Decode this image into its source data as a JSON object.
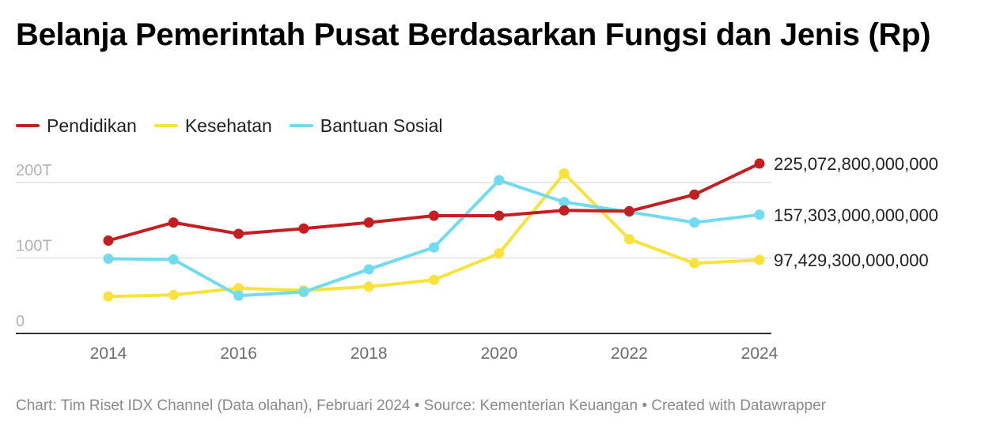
{
  "title": "Belanja Pemerintah Pusat Berdasarkan Fungsi dan Jenis (Rp)",
  "footer": {
    "text": "Chart: Tim Riset IDX Channel (Data olahan), Februari 2024 • Source: Kementerian Keuangan • Created with Datawrapper"
  },
  "chart_data": {
    "type": "line",
    "title": "Belanja Pemerintah Pusat Berdasarkan Fungsi dan Jenis (Rp)",
    "x": [
      2014,
      2015,
      2016,
      2017,
      2018,
      2019,
      2020,
      2021,
      2022,
      2023,
      2024
    ],
    "x_ticks": [
      "2014",
      "2016",
      "2018",
      "2020",
      "2022",
      "2024"
    ],
    "y_ticks": [
      {
        "value": 0,
        "label": "0"
      },
      {
        "value": 100,
        "label": "100T"
      },
      {
        "value": 200,
        "label": "200T"
      }
    ],
    "y_unit": "trillion Rp",
    "ylim": [
      0,
      250
    ],
    "grid": true,
    "legend_position": "top-left",
    "series": [
      {
        "name": "Pendidikan",
        "color": "#c11f20",
        "values": [
          123,
          147,
          132,
          139,
          147,
          156,
          156,
          163,
          162,
          184,
          225.0728
        ],
        "end_label": "225,072,800,000,000"
      },
      {
        "name": "Kesehatan",
        "color": "#f8e23b",
        "values": [
          49,
          51,
          60,
          57,
          62,
          71,
          106,
          212,
          125,
          93,
          97.4293
        ],
        "end_label": "97,429,300,000,000"
      },
      {
        "name": "Bantuan Sosial",
        "color": "#72dbef",
        "values": [
          99,
          98,
          50,
          55,
          85,
          114,
          203,
          174,
          161,
          147,
          157.303
        ],
        "end_label": "157,303,000,000,000"
      }
    ]
  }
}
